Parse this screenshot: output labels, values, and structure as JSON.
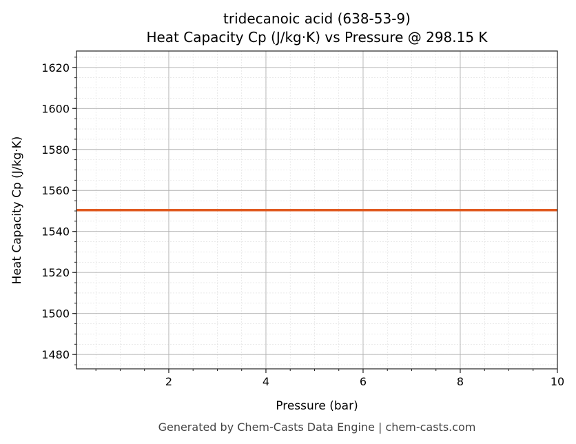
{
  "chart_data": {
    "type": "line",
    "title": "tridecanoic acid (638-53-9)",
    "subtitle": "Heat Capacity Cp (J/kg·K) vs Pressure @ 298.15 K",
    "xlabel": "Pressure (bar)",
    "ylabel": "Heat Capacity Cp (J/kg·K)",
    "xlim": [
      0.1,
      10
    ],
    "ylim": [
      1473,
      1628
    ],
    "xticks": [
      2,
      4,
      6,
      8,
      10
    ],
    "yticks": [
      1480,
      1500,
      1520,
      1540,
      1560,
      1580,
      1600,
      1620
    ],
    "grid": true,
    "series": [
      {
        "x": [
          0.1,
          10
        ],
        "y": [
          1550.4,
          1550.4
        ],
        "color": "#e05a20"
      }
    ],
    "footer": "Generated by Chem-Casts Data Engine | chem-casts.com"
  }
}
